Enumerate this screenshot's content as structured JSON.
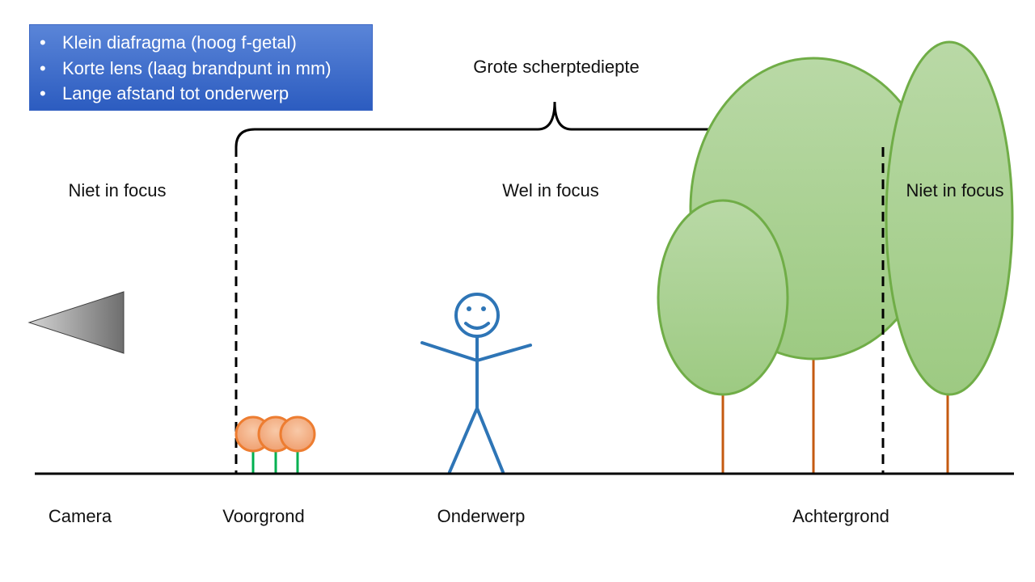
{
  "info": {
    "items": [
      "Klein diafragma (hoog f-getal)",
      "Korte lens (laag brandpunt in mm)",
      "Lange afstand tot onderwerp"
    ]
  },
  "labels": {
    "dof": "Grote scherptediepte",
    "out_focus_left": "Niet in focus",
    "in_focus": "Wel in focus",
    "out_focus_right": "Niet in focus",
    "camera": "Camera",
    "foreground": "Voorgrond",
    "subject": "Onderwerp",
    "background": "Achtergrond"
  },
  "colors": {
    "box_top": "#5a85d8",
    "box_bottom": "#2c5cc0",
    "person": "#2e75b6",
    "tree_fill": "#a9d08e",
    "tree_stroke": "#70ad47",
    "trunk": "#c55a11",
    "flower_fill": "#f4b183",
    "flower_stroke": "#ed7d31",
    "stem": "#00b050"
  }
}
